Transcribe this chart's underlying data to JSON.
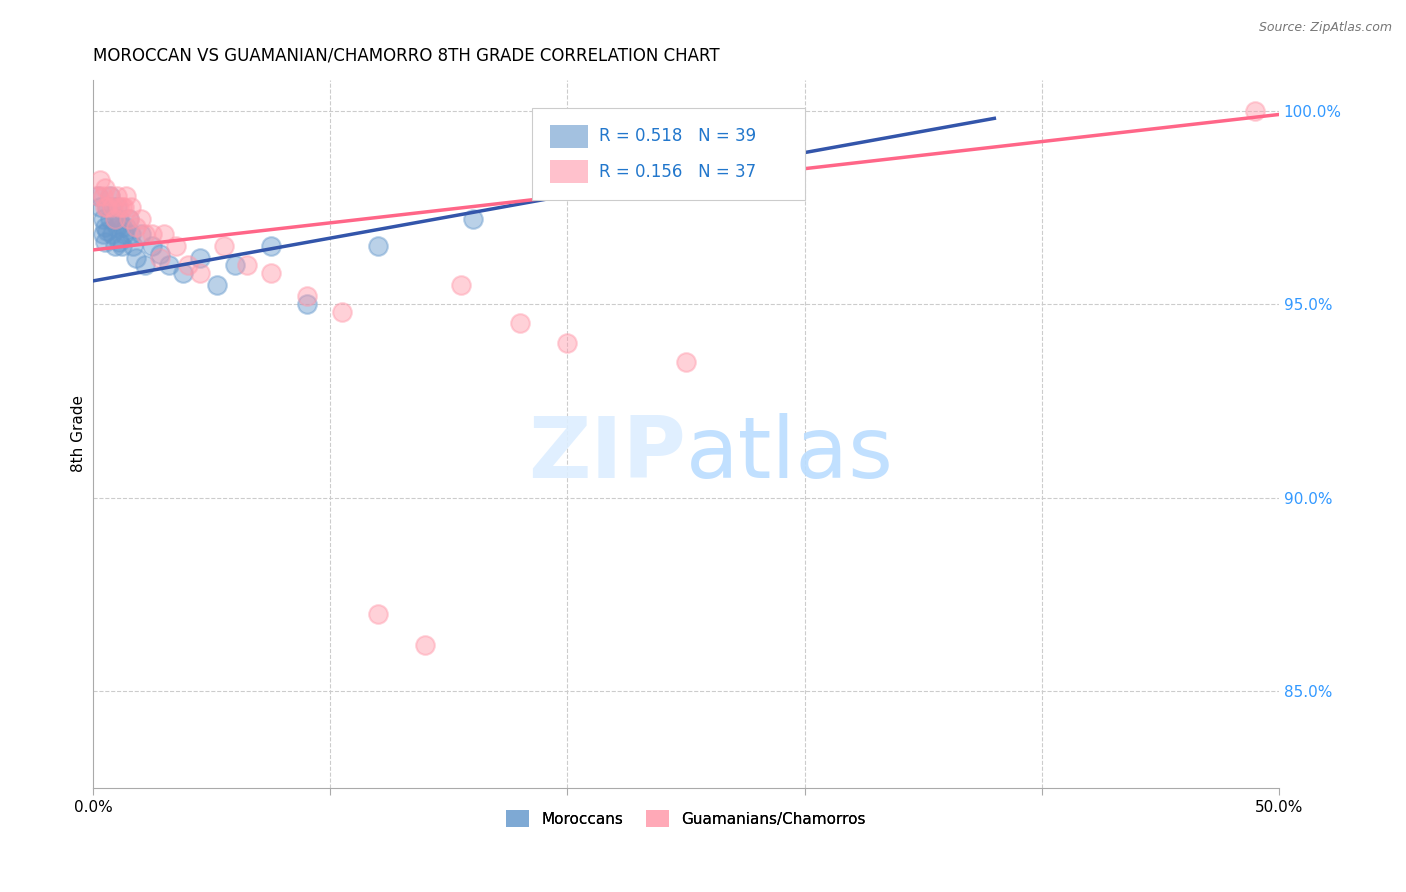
{
  "title": "MOROCCAN VS GUAMANIAN/CHAMORRO 8TH GRADE CORRELATION CHART",
  "source": "Source: ZipAtlas.com",
  "ylabel": "8th Grade",
  "ylabel_right_ticks": [
    "85.0%",
    "90.0%",
    "95.0%",
    "100.0%"
  ],
  "ylabel_right_values": [
    0.85,
    0.9,
    0.95,
    1.0
  ],
  "xlim": [
    0.0,
    0.5
  ],
  "ylim": [
    0.825,
    1.008
  ],
  "legend_blue_r": "R = 0.518",
  "legend_blue_n": "N = 39",
  "legend_pink_r": "R = 0.156",
  "legend_pink_n": "N = 37",
  "legend_blue_label": "Moroccans",
  "legend_pink_label": "Guamanians/Chamorros",
  "blue_color": "#6699CC",
  "pink_color": "#FF99AA",
  "line_blue_color": "#3355AA",
  "line_pink_color": "#FF6688",
  "blue_scatter_x": [
    0.002,
    0.003,
    0.004,
    0.004,
    0.005,
    0.005,
    0.006,
    0.006,
    0.007,
    0.007,
    0.008,
    0.008,
    0.009,
    0.009,
    0.01,
    0.01,
    0.011,
    0.011,
    0.012,
    0.012,
    0.013,
    0.014,
    0.015,
    0.016,
    0.017,
    0.018,
    0.02,
    0.022,
    0.025,
    0.028,
    0.032,
    0.038,
    0.045,
    0.052,
    0.06,
    0.075,
    0.09,
    0.12,
    0.16
  ],
  "blue_scatter_y": [
    0.978,
    0.975,
    0.972,
    0.968,
    0.97,
    0.966,
    0.975,
    0.969,
    0.978,
    0.972,
    0.975,
    0.968,
    0.972,
    0.965,
    0.975,
    0.97,
    0.972,
    0.966,
    0.97,
    0.965,
    0.968,
    0.97,
    0.972,
    0.968,
    0.965,
    0.962,
    0.968,
    0.96,
    0.965,
    0.963,
    0.96,
    0.958,
    0.962,
    0.955,
    0.96,
    0.965,
    0.95,
    0.965,
    0.972
  ],
  "pink_scatter_x": [
    0.002,
    0.003,
    0.004,
    0.005,
    0.005,
    0.006,
    0.007,
    0.008,
    0.009,
    0.01,
    0.011,
    0.012,
    0.013,
    0.014,
    0.015,
    0.016,
    0.018,
    0.02,
    0.022,
    0.025,
    0.028,
    0.03,
    0.035,
    0.04,
    0.045,
    0.055,
    0.065,
    0.075,
    0.09,
    0.105,
    0.12,
    0.14,
    0.155,
    0.18,
    0.2,
    0.25,
    0.49
  ],
  "pink_scatter_y": [
    0.978,
    0.982,
    0.978,
    0.975,
    0.98,
    0.975,
    0.978,
    0.975,
    0.972,
    0.978,
    0.975,
    0.975,
    0.975,
    0.978,
    0.972,
    0.975,
    0.97,
    0.972,
    0.968,
    0.968,
    0.962,
    0.968,
    0.965,
    0.96,
    0.958,
    0.965,
    0.96,
    0.958,
    0.952,
    0.948,
    0.87,
    0.862,
    0.955,
    0.945,
    0.94,
    0.935,
    1.0
  ],
  "blue_line_x": [
    0.0,
    0.38
  ],
  "blue_line_y": [
    0.956,
    0.998
  ],
  "pink_line_x": [
    0.0,
    0.5
  ],
  "pink_line_y": [
    0.964,
    0.999
  ],
  "grid_color": "#CCCCCC",
  "background_color": "#FFFFFF"
}
